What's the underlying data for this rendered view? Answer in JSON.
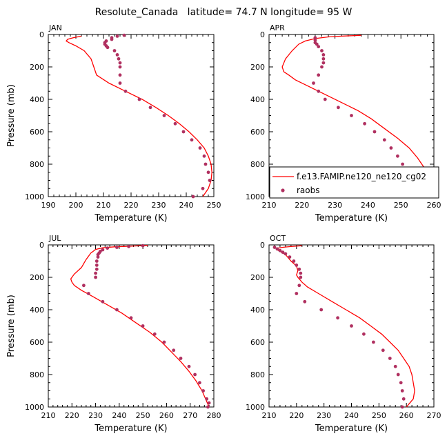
{
  "figure_title": "Resolute_Canada   latitude= 74.7 N longitude= 95 W",
  "colors": {
    "model": "#ff0000",
    "obs": "#b03060"
  },
  "legend": {
    "placement": "in APR panel, lower-right",
    "model_label": "f.e13.FAMIP.ne120_ne120_cg02",
    "obs_label": "raobs"
  },
  "chart_data": [
    {
      "type": "line",
      "title": "JAN",
      "xlabel": "Temperature (K)",
      "ylabel": "Pressure (mb)",
      "xlim": [
        190,
        250
      ],
      "ylim": [
        1000,
        0
      ],
      "xticks": [
        "190",
        "200",
        "210",
        "220",
        "230",
        "240",
        "250"
      ],
      "yticks": [
        "0",
        "200",
        "400",
        "600",
        "800",
        "1000"
      ],
      "series": [
        {
          "name": "f.e13.FAMIP.ne120_ne120_cg02",
          "style": "line",
          "points": [
            [
              202,
              10
            ],
            [
              199,
              20
            ],
            [
              197,
              30
            ],
            [
              196.5,
              40
            ],
            [
              197.5,
              50
            ],
            [
              200,
              70
            ],
            [
              203,
              100
            ],
            [
              205.5,
              150
            ],
            [
              206.5,
              200
            ],
            [
              207.5,
              250
            ],
            [
              212,
              300
            ],
            [
              218,
              350
            ],
            [
              224,
              400
            ],
            [
              229,
              450
            ],
            [
              233.5,
              500
            ],
            [
              237.5,
              550
            ],
            [
              241,
              600
            ],
            [
              244,
              650
            ],
            [
              246.5,
              700
            ],
            [
              248,
              750
            ],
            [
              249,
              800
            ],
            [
              249.3,
              850
            ],
            [
              249,
              900
            ],
            [
              248,
              950
            ],
            [
              246,
              1000
            ]
          ]
        },
        {
          "name": "raobs",
          "style": "points",
          "points": [
            [
              217.5,
              5
            ],
            [
              215,
              10
            ],
            [
              213,
              20
            ],
            [
              213,
              30
            ],
            [
              211,
              40
            ],
            [
              210.5,
              50
            ],
            [
              210.5,
              60
            ],
            [
              211,
              70
            ],
            [
              211.5,
              80
            ],
            [
              214,
              100
            ],
            [
              215,
              125
            ],
            [
              215.5,
              150
            ],
            [
              216,
              175
            ],
            [
              216,
              200
            ],
            [
              216,
              250
            ],
            [
              216,
              300
            ],
            [
              218,
              350
            ],
            [
              223,
              400
            ],
            [
              227,
              450
            ],
            [
              232,
              500
            ],
            [
              236,
              550
            ],
            [
              239,
              600
            ],
            [
              242,
              650
            ],
            [
              245,
              700
            ],
            [
              246.5,
              750
            ],
            [
              247,
              800
            ],
            [
              248,
              850
            ],
            [
              248.5,
              900
            ],
            [
              246,
              950
            ],
            [
              242.5,
              1000
            ]
          ]
        }
      ]
    },
    {
      "type": "line",
      "title": "APR",
      "xlabel": "Temperature (K)",
      "ylabel": "",
      "xlim": [
        210,
        260
      ],
      "ylim": [
        1000,
        0
      ],
      "xticks": [
        "210",
        "220",
        "230",
        "240",
        "250",
        "260"
      ],
      "yticks": [
        "0",
        "200",
        "400",
        "600",
        "800",
        "1000"
      ],
      "series": [
        {
          "name": "f.e13.FAMIP.ne120_ne120_cg02",
          "style": "line",
          "points": [
            [
              238,
              5
            ],
            [
              232,
              10
            ],
            [
              228,
              15
            ],
            [
              224,
              25
            ],
            [
              221,
              40
            ],
            [
              219,
              60
            ],
            [
              217,
              100
            ],
            [
              215,
              150
            ],
            [
              214,
              200
            ],
            [
              214.5,
              230
            ],
            [
              216,
              250
            ],
            [
              218,
              280
            ],
            [
              222,
              320
            ],
            [
              227,
              370
            ],
            [
              232,
              420
            ],
            [
              237,
              470
            ],
            [
              241,
              520
            ],
            [
              245,
              580
            ],
            [
              249,
              640
            ],
            [
              252.5,
              700
            ],
            [
              255,
              760
            ],
            [
              257,
              820
            ],
            [
              257.5,
              850
            ],
            [
              257,
              900
            ],
            [
              255.5,
              950
            ],
            [
              253,
              1000
            ]
          ]
        },
        {
          "name": "raobs",
          "style": "points",
          "points": [
            [
              224,
              20
            ],
            [
              224,
              35
            ],
            [
              224,
              50
            ],
            [
              224.5,
              60
            ],
            [
              225,
              75
            ],
            [
              226,
              100
            ],
            [
              226.5,
              125
            ],
            [
              226.5,
              150
            ],
            [
              226.5,
              175
            ],
            [
              226,
              200
            ],
            [
              225,
              250
            ],
            [
              223.5,
              300
            ],
            [
              225,
              350
            ],
            [
              227,
              400
            ],
            [
              231,
              450
            ],
            [
              235,
              500
            ],
            [
              239,
              550
            ],
            [
              242,
              600
            ],
            [
              245,
              650
            ],
            [
              247,
              700
            ],
            [
              249,
              750
            ],
            [
              250.5,
              800
            ],
            [
              251.5,
              850
            ],
            [
              252,
              900
            ],
            [
              251.5,
              950
            ],
            [
              250.5,
              1000
            ]
          ]
        }
      ]
    },
    {
      "type": "line",
      "title": "JUL",
      "xlabel": "Temperature (K)",
      "ylabel": "Pressure (mb)",
      "xlim": [
        210,
        280
      ],
      "ylim": [
        1000,
        0
      ],
      "xticks": [
        "210",
        "220",
        "230",
        "240",
        "250",
        "260",
        "270",
        "280"
      ],
      "yticks": [
        "0",
        "200",
        "400",
        "600",
        "800",
        "1000"
      ],
      "series": [
        {
          "name": "f.e13.FAMIP.ne120_ne120_cg02",
          "style": "line",
          "points": [
            [
              252,
              3
            ],
            [
              245,
              8
            ],
            [
              238,
              12
            ],
            [
              233,
              18
            ],
            [
              230,
              28
            ],
            [
              228,
              50
            ],
            [
              226,
              90
            ],
            [
              224,
              140
            ],
            [
              221,
              180
            ],
            [
              219.5,
              210
            ],
            [
              220,
              230
            ],
            [
              221,
              250
            ],
            [
              224,
              280
            ],
            [
              229,
              320
            ],
            [
              235,
              370
            ],
            [
              241,
              420
            ],
            [
              247,
              480
            ],
            [
              253,
              540
            ],
            [
              258,
              600
            ],
            [
              262,
              660
            ],
            [
              266,
              720
            ],
            [
              269.5,
              780
            ],
            [
              272.5,
              840
            ],
            [
              275,
              900
            ],
            [
              276.5,
              950
            ],
            [
              278,
              1000
            ]
          ]
        },
        {
          "name": "raobs",
          "style": "points",
          "points": [
            [
              250,
              5
            ],
            [
              244,
              10
            ],
            [
              239,
              15
            ],
            [
              235,
              20
            ],
            [
              233,
              30
            ],
            [
              232,
              40
            ],
            [
              231.5,
              50
            ],
            [
              231,
              60
            ],
            [
              231,
              75
            ],
            [
              230.5,
              100
            ],
            [
              230.5,
              125
            ],
            [
              230.5,
              150
            ],
            [
              230,
              175
            ],
            [
              230,
              200
            ],
            [
              225,
              250
            ],
            [
              227,
              300
            ],
            [
              233,
              350
            ],
            [
              239,
              400
            ],
            [
              245,
              450
            ],
            [
              250,
              500
            ],
            [
              255,
              550
            ],
            [
              259,
              600
            ],
            [
              263,
              650
            ],
            [
              266,
              700
            ],
            [
              269.5,
              750
            ],
            [
              272,
              800
            ],
            [
              274,
              850
            ],
            [
              275.5,
              900
            ],
            [
              277,
              950
            ],
            [
              278,
              975
            ],
            [
              277.5,
              1000
            ]
          ]
        }
      ]
    },
    {
      "type": "line",
      "title": "OCT",
      "xlabel": "Temperature (K)",
      "ylabel": "",
      "xlim": [
        210,
        270
      ],
      "ylim": [
        1000,
        0
      ],
      "xticks": [
        "210",
        "220",
        "230",
        "240",
        "250",
        "260",
        "270"
      ],
      "yticks": [
        "0",
        "200",
        "400",
        "600",
        "800",
        "1000"
      ],
      "series": [
        {
          "name": "f.e13.FAMIP.ne120_ne120_cg02",
          "style": "line",
          "points": [
            [
              222,
              5
            ],
            [
              218,
              10
            ],
            [
              215,
              15
            ],
            [
              213,
              20
            ],
            [
              213,
              30
            ],
            [
              214,
              40
            ],
            [
              216,
              60
            ],
            [
              218,
              100
            ],
            [
              220,
              130
            ],
            [
              220.5,
              160
            ],
            [
              220,
              185
            ],
            [
              220.5,
              200
            ],
            [
              222,
              230
            ],
            [
              224,
              260
            ],
            [
              228,
              300
            ],
            [
              233,
              350
            ],
            [
              238,
              400
            ],
            [
              243,
              450
            ],
            [
              247,
              500
            ],
            [
              251,
              550
            ],
            [
              254,
              600
            ],
            [
              257,
              650
            ],
            [
              259,
              700
            ],
            [
              261,
              750
            ],
            [
              262,
              800
            ],
            [
              262.5,
              850
            ],
            [
              263,
              900
            ],
            [
              262.5,
              950
            ],
            [
              261,
              980
            ],
            [
              260,
              1000
            ]
          ]
        },
        {
          "name": "raobs",
          "style": "points",
          "points": [
            [
              212,
              15
            ],
            [
              213,
              25
            ],
            [
              214,
              35
            ],
            [
              215,
              45
            ],
            [
              216,
              55
            ],
            [
              217.5,
              75
            ],
            [
              219,
              100
            ],
            [
              220,
              125
            ],
            [
              221,
              150
            ],
            [
              221.5,
              175
            ],
            [
              221.5,
              200
            ],
            [
              221,
              250
            ],
            [
              220,
              300
            ],
            [
              223,
              350
            ],
            [
              229,
              400
            ],
            [
              235,
              450
            ],
            [
              240,
              500
            ],
            [
              244.5,
              550
            ],
            [
              248,
              600
            ],
            [
              251.5,
              650
            ],
            [
              254,
              700
            ],
            [
              256,
              750
            ],
            [
              257,
              800
            ],
            [
              258,
              850
            ],
            [
              258.5,
              900
            ],
            [
              259,
              950
            ],
            [
              258.5,
              1000
            ]
          ]
        }
      ]
    }
  ]
}
